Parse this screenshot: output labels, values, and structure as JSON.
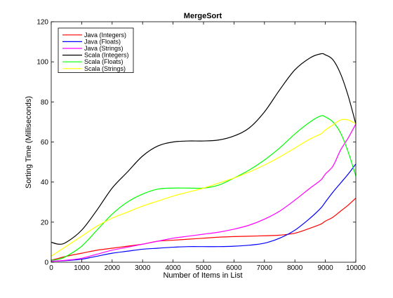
{
  "chart_data": {
    "type": "line",
    "title": "MergeSort",
    "xlabel": "Number of Items in List",
    "ylabel": "Sorting Time (Milliseconds)",
    "xlim": [
      0,
      10000
    ],
    "ylim": [
      0,
      120
    ],
    "xticks": [
      0,
      1000,
      2000,
      3000,
      4000,
      5000,
      6000,
      7000,
      8000,
      9000,
      10000
    ],
    "yticks": [
      0,
      20,
      40,
      60,
      80,
      100,
      120
    ],
    "grid": false,
    "legend_position": "top-left",
    "x": [
      0,
      250,
      500,
      1000,
      1500,
      2000,
      2500,
      3000,
      3500,
      4000,
      4500,
      5000,
      5500,
      6000,
      6500,
      7000,
      7500,
      8000,
      8500,
      8850,
      9000,
      9250,
      9500,
      9750,
      10000
    ],
    "series": [
      {
        "name": "Java (Integers)",
        "color": "#ff0000",
        "values": [
          1,
          2,
          3,
          4.5,
          6,
          7,
          8,
          9,
          10.5,
          11,
          11.5,
          12,
          12.5,
          12.8,
          13,
          13.2,
          13.5,
          14.5,
          17,
          19,
          20.5,
          22.5,
          25.5,
          28.5,
          32
        ]
      },
      {
        "name": "Java (Floats)",
        "color": "#0000ff",
        "values": [
          0.5,
          0.6,
          0.8,
          1.5,
          3,
          4.5,
          5.5,
          6.5,
          7,
          7.5,
          7.8,
          7.8,
          7.8,
          8,
          8.5,
          9.5,
          12,
          16,
          22,
          27,
          30,
          35,
          39.5,
          44,
          49
        ]
      },
      {
        "name": "Java (Strings)",
        "color": "#ff00ff",
        "values": [
          0.5,
          0.7,
          1,
          2,
          4,
          6,
          7.5,
          9,
          10.5,
          12,
          13,
          14,
          15,
          16.5,
          18.5,
          21.5,
          25.5,
          31,
          37,
          41,
          44,
          48,
          56,
          62,
          69
        ]
      },
      {
        "name": "Scala (Integers)",
        "color": "#000000",
        "values": [
          10,
          9,
          10,
          16,
          26,
          37,
          45,
          53,
          58,
          60,
          60.5,
          60.5,
          61,
          63,
          67,
          75,
          86,
          96,
          102,
          104,
          103.5,
          101,
          94,
          83,
          69
        ]
      },
      {
        "name": "Scala (Floats)",
        "color": "#00ff00",
        "values": [
          1,
          1.5,
          3,
          8,
          16,
          24,
          30,
          34,
          36.5,
          37,
          37,
          37,
          38.5,
          42,
          46,
          51,
          57,
          64,
          70,
          73,
          72.5,
          70,
          64.5,
          55,
          43
        ]
      },
      {
        "name": "Scala (Strings)",
        "color": "#ffff00",
        "values": [
          3,
          5.5,
          8,
          13,
          18,
          22,
          25,
          28,
          30.5,
          33,
          35,
          37,
          39.5,
          42,
          45,
          48.5,
          52.5,
          57,
          61.5,
          64,
          66,
          68.5,
          71,
          71,
          69
        ]
      }
    ]
  }
}
